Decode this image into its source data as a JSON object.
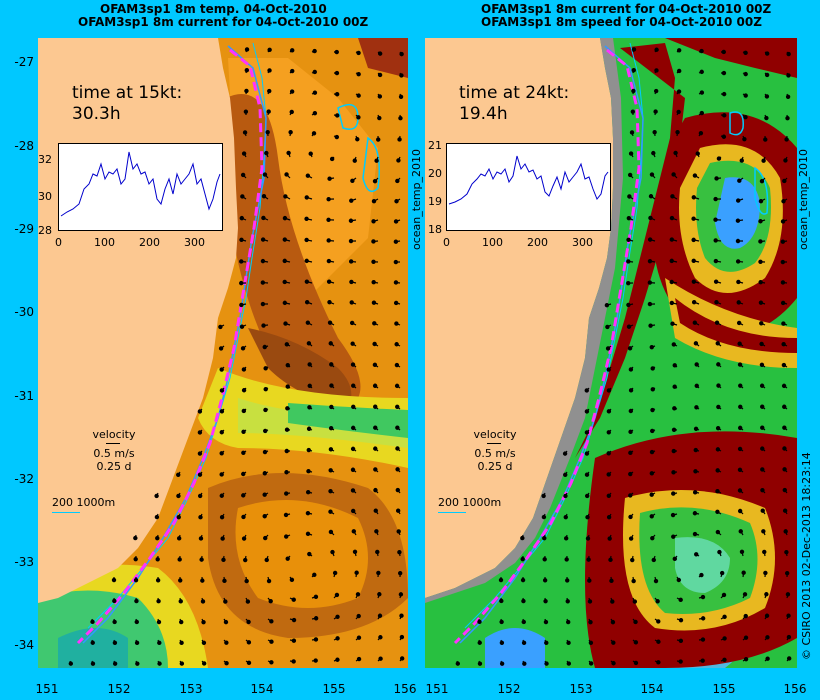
{
  "panels": [
    {
      "title_line1": "OFAM3sp1 8m temp. 04-Oct-2010",
      "title_line2": "OFAM3sp1 8m current for 04-Oct-2010 00Z",
      "time_label": "time at 15kt:",
      "time_value": "30.3h",
      "inset_yticks": [
        "32",
        "30",
        "28"
      ],
      "inset_xticks": [
        "0",
        "100",
        "200",
        "300"
      ],
      "side_label": "ocean_temp_2010"
    },
    {
      "title_line1": "OFAM3sp1 8m current for 04-Oct-2010 00Z",
      "title_line2": "OFAM3sp1 8m speed for 04-Oct-2010 00Z",
      "time_label": "time at 24kt:",
      "time_value": "19.4h",
      "inset_yticks": [
        "21",
        "20",
        "19",
        "18"
      ],
      "inset_xticks": [
        "0",
        "100",
        "200",
        "300"
      ],
      "side_label": "ocean_temp_2010"
    }
  ],
  "velocity_legend": {
    "label": "velocity",
    "speed": "0.5 m/s",
    "duration": "0.25 d"
  },
  "depth_legend": {
    "label": "200  1000m"
  },
  "lat_ticks": [
    "-27",
    "-28",
    "-29",
    "-30",
    "-31",
    "-32",
    "-33",
    "-34"
  ],
  "lon_ticks": [
    "151",
    "152",
    "153",
    "154",
    "155",
    "156"
  ],
  "credit": "© CSIRO 2013  02-Dec-2013 18:23:14",
  "colors": {
    "background": "#00c8ff",
    "land": "#fcc891",
    "route": "#ff33ff",
    "route_line": "#3399ff",
    "isobath": "#00ccff",
    "warm_dark": "#a04010",
    "warm": "#e08000",
    "yellow": "#f0e000",
    "green": "#30c840",
    "dark_red": "#900000",
    "blue": "#1e8cff"
  }
}
